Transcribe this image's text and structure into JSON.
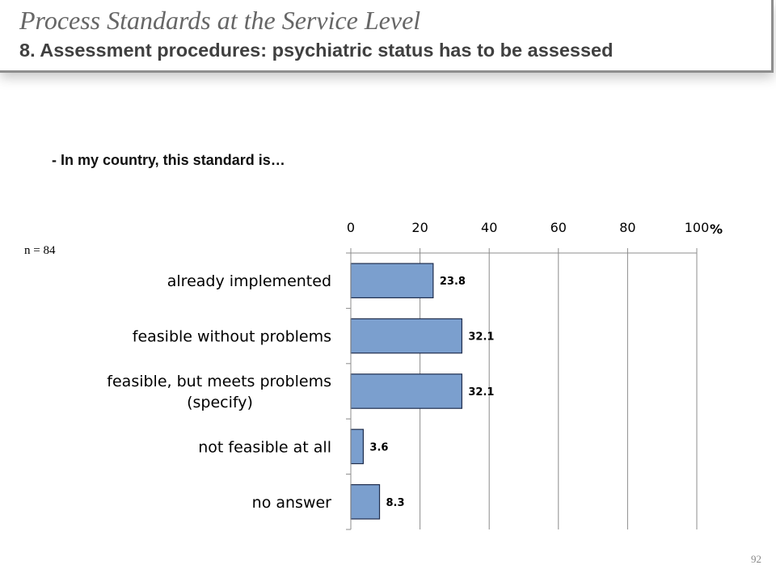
{
  "slide": {
    "title": "Process Standards at the Service Level",
    "subtitle": "8. Assessment procedures: psychiatric status has to be assessed",
    "question": "- In my country, this standard is…",
    "sample_size": "n = 84",
    "page_number": "92"
  },
  "colors": {
    "bar_fill": "#7b9fce",
    "bar_stroke": "#1f2d4d",
    "gridline": "#8c8c8c"
  },
  "chart_data": {
    "type": "bar",
    "orientation": "horizontal",
    "categories": [
      [
        "already implemented"
      ],
      [
        "feasible without problems"
      ],
      [
        "feasible, but meets problems",
        "(specify)"
      ],
      [
        "not feasible at all"
      ],
      [
        "no answer"
      ]
    ],
    "values": [
      23.8,
      32.1,
      32.1,
      3.6,
      8.3
    ],
    "value_labels": [
      "23.8",
      "32.1",
      "32.1",
      "3.6",
      "8.3"
    ],
    "x_ticks": [
      "0",
      "20",
      "40",
      "60",
      "80",
      "100"
    ],
    "xlim": [
      0,
      100
    ],
    "x_unit": "%",
    "x_axis_position": "top",
    "grid": true,
    "legend": false
  }
}
